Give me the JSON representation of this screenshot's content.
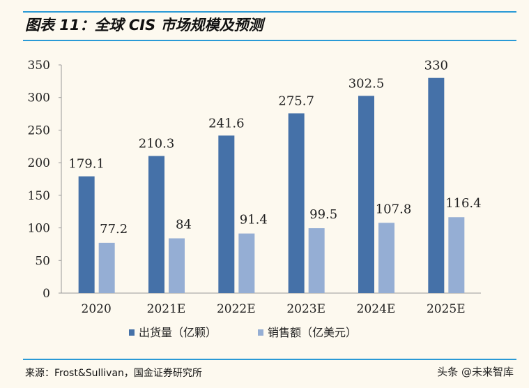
{
  "title": "图表 11：全球 CIS 市场规模及预测",
  "source": "来源：Frost&Sullivan，国金证券研究所",
  "watermark": "头条 @未来智库",
  "colors": {
    "shipment": "#4571a8",
    "sales": "#95aed4",
    "rule": "#2a9ad6"
  },
  "chart_data": {
    "type": "bar",
    "categories": [
      "2020",
      "2021E",
      "2022E",
      "2023E",
      "2024E",
      "2025E"
    ],
    "series": [
      {
        "name": "出货量（亿颗）",
        "values": [
          179.1,
          210.3,
          241.6,
          275.7,
          302.5,
          330
        ]
      },
      {
        "name": "销售额（亿美元）",
        "values": [
          77.2,
          84,
          91.4,
          99.5,
          107.8,
          116.4
        ]
      }
    ],
    "ylim": [
      0,
      350
    ],
    "yticks": [
      0,
      50,
      100,
      150,
      200,
      250,
      300,
      350
    ],
    "legend": "bottom",
    "grid": false
  }
}
